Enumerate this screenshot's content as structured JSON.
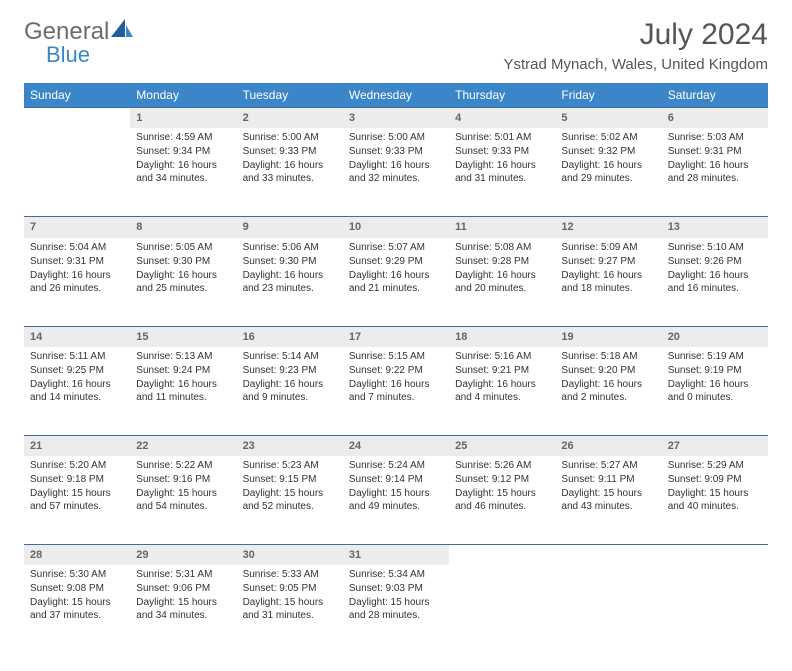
{
  "logo": {
    "text1": "General",
    "text2": "Blue"
  },
  "title": "July 2024",
  "location": "Ystrad Mynach, Wales, United Kingdom",
  "day_headers": [
    "Sunday",
    "Monday",
    "Tuesday",
    "Wednesday",
    "Thursday",
    "Friday",
    "Saturday"
  ],
  "colors": {
    "header_bg": "#3a86c8",
    "header_text": "#ffffff",
    "daynum_bg": "#ececec",
    "daynum_border": "#3a6ea5",
    "text": "#333333",
    "logo_gray": "#6b6b6b",
    "logo_blue": "#3a86c8"
  },
  "weeks": [
    [
      {
        "n": "",
        "sr": "",
        "ss": "",
        "dl": ""
      },
      {
        "n": "1",
        "sr": "Sunrise: 4:59 AM",
        "ss": "Sunset: 9:34 PM",
        "dl": "Daylight: 16 hours and 34 minutes."
      },
      {
        "n": "2",
        "sr": "Sunrise: 5:00 AM",
        "ss": "Sunset: 9:33 PM",
        "dl": "Daylight: 16 hours and 33 minutes."
      },
      {
        "n": "3",
        "sr": "Sunrise: 5:00 AM",
        "ss": "Sunset: 9:33 PM",
        "dl": "Daylight: 16 hours and 32 minutes."
      },
      {
        "n": "4",
        "sr": "Sunrise: 5:01 AM",
        "ss": "Sunset: 9:33 PM",
        "dl": "Daylight: 16 hours and 31 minutes."
      },
      {
        "n": "5",
        "sr": "Sunrise: 5:02 AM",
        "ss": "Sunset: 9:32 PM",
        "dl": "Daylight: 16 hours and 29 minutes."
      },
      {
        "n": "6",
        "sr": "Sunrise: 5:03 AM",
        "ss": "Sunset: 9:31 PM",
        "dl": "Daylight: 16 hours and 28 minutes."
      }
    ],
    [
      {
        "n": "7",
        "sr": "Sunrise: 5:04 AM",
        "ss": "Sunset: 9:31 PM",
        "dl": "Daylight: 16 hours and 26 minutes."
      },
      {
        "n": "8",
        "sr": "Sunrise: 5:05 AM",
        "ss": "Sunset: 9:30 PM",
        "dl": "Daylight: 16 hours and 25 minutes."
      },
      {
        "n": "9",
        "sr": "Sunrise: 5:06 AM",
        "ss": "Sunset: 9:30 PM",
        "dl": "Daylight: 16 hours and 23 minutes."
      },
      {
        "n": "10",
        "sr": "Sunrise: 5:07 AM",
        "ss": "Sunset: 9:29 PM",
        "dl": "Daylight: 16 hours and 21 minutes."
      },
      {
        "n": "11",
        "sr": "Sunrise: 5:08 AM",
        "ss": "Sunset: 9:28 PM",
        "dl": "Daylight: 16 hours and 20 minutes."
      },
      {
        "n": "12",
        "sr": "Sunrise: 5:09 AM",
        "ss": "Sunset: 9:27 PM",
        "dl": "Daylight: 16 hours and 18 minutes."
      },
      {
        "n": "13",
        "sr": "Sunrise: 5:10 AM",
        "ss": "Sunset: 9:26 PM",
        "dl": "Daylight: 16 hours and 16 minutes."
      }
    ],
    [
      {
        "n": "14",
        "sr": "Sunrise: 5:11 AM",
        "ss": "Sunset: 9:25 PM",
        "dl": "Daylight: 16 hours and 14 minutes."
      },
      {
        "n": "15",
        "sr": "Sunrise: 5:13 AM",
        "ss": "Sunset: 9:24 PM",
        "dl": "Daylight: 16 hours and 11 minutes."
      },
      {
        "n": "16",
        "sr": "Sunrise: 5:14 AM",
        "ss": "Sunset: 9:23 PM",
        "dl": "Daylight: 16 hours and 9 minutes."
      },
      {
        "n": "17",
        "sr": "Sunrise: 5:15 AM",
        "ss": "Sunset: 9:22 PM",
        "dl": "Daylight: 16 hours and 7 minutes."
      },
      {
        "n": "18",
        "sr": "Sunrise: 5:16 AM",
        "ss": "Sunset: 9:21 PM",
        "dl": "Daylight: 16 hours and 4 minutes."
      },
      {
        "n": "19",
        "sr": "Sunrise: 5:18 AM",
        "ss": "Sunset: 9:20 PM",
        "dl": "Daylight: 16 hours and 2 minutes."
      },
      {
        "n": "20",
        "sr": "Sunrise: 5:19 AM",
        "ss": "Sunset: 9:19 PM",
        "dl": "Daylight: 16 hours and 0 minutes."
      }
    ],
    [
      {
        "n": "21",
        "sr": "Sunrise: 5:20 AM",
        "ss": "Sunset: 9:18 PM",
        "dl": "Daylight: 15 hours and 57 minutes."
      },
      {
        "n": "22",
        "sr": "Sunrise: 5:22 AM",
        "ss": "Sunset: 9:16 PM",
        "dl": "Daylight: 15 hours and 54 minutes."
      },
      {
        "n": "23",
        "sr": "Sunrise: 5:23 AM",
        "ss": "Sunset: 9:15 PM",
        "dl": "Daylight: 15 hours and 52 minutes."
      },
      {
        "n": "24",
        "sr": "Sunrise: 5:24 AM",
        "ss": "Sunset: 9:14 PM",
        "dl": "Daylight: 15 hours and 49 minutes."
      },
      {
        "n": "25",
        "sr": "Sunrise: 5:26 AM",
        "ss": "Sunset: 9:12 PM",
        "dl": "Daylight: 15 hours and 46 minutes."
      },
      {
        "n": "26",
        "sr": "Sunrise: 5:27 AM",
        "ss": "Sunset: 9:11 PM",
        "dl": "Daylight: 15 hours and 43 minutes."
      },
      {
        "n": "27",
        "sr": "Sunrise: 5:29 AM",
        "ss": "Sunset: 9:09 PM",
        "dl": "Daylight: 15 hours and 40 minutes."
      }
    ],
    [
      {
        "n": "28",
        "sr": "Sunrise: 5:30 AM",
        "ss": "Sunset: 9:08 PM",
        "dl": "Daylight: 15 hours and 37 minutes."
      },
      {
        "n": "29",
        "sr": "Sunrise: 5:31 AM",
        "ss": "Sunset: 9:06 PM",
        "dl": "Daylight: 15 hours and 34 minutes."
      },
      {
        "n": "30",
        "sr": "Sunrise: 5:33 AM",
        "ss": "Sunset: 9:05 PM",
        "dl": "Daylight: 15 hours and 31 minutes."
      },
      {
        "n": "31",
        "sr": "Sunrise: 5:34 AM",
        "ss": "Sunset: 9:03 PM",
        "dl": "Daylight: 15 hours and 28 minutes."
      },
      {
        "n": "",
        "sr": "",
        "ss": "",
        "dl": ""
      },
      {
        "n": "",
        "sr": "",
        "ss": "",
        "dl": ""
      },
      {
        "n": "",
        "sr": "",
        "ss": "",
        "dl": ""
      }
    ]
  ]
}
